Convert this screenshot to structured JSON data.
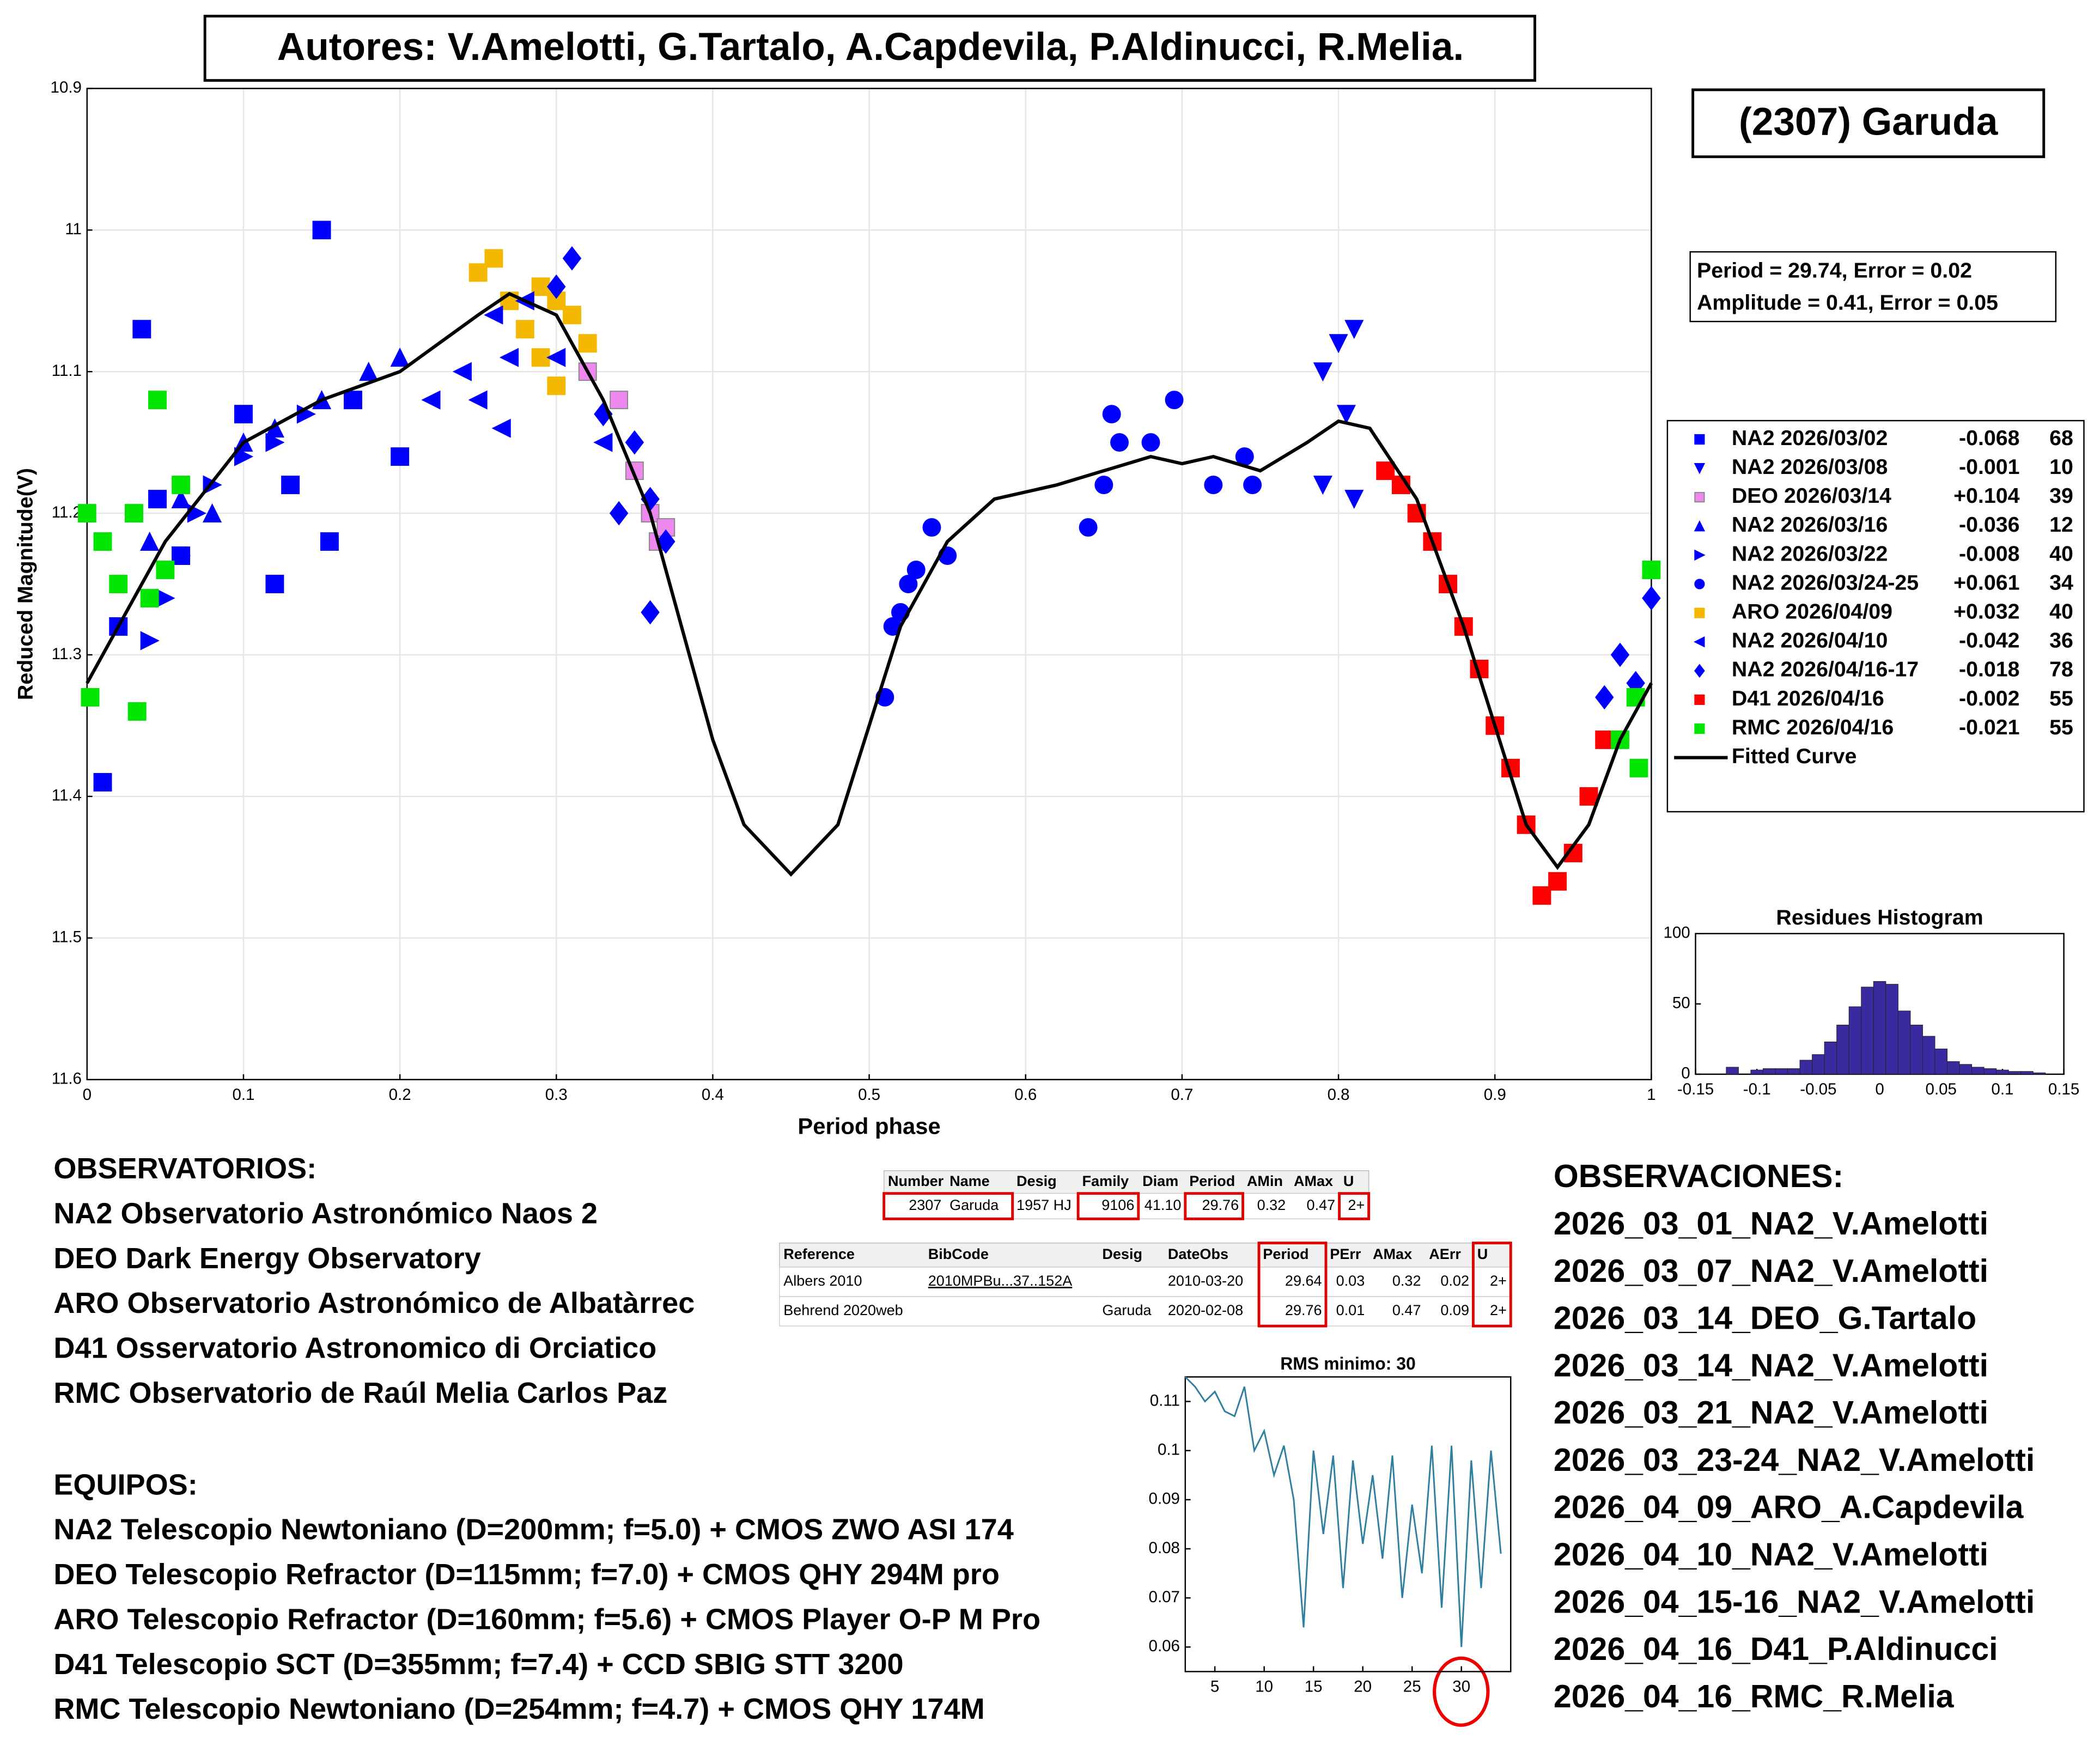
{
  "authors": "Autores: V.Amelotti, G.Tartalo, A.Capdevila, P.Aldinucci, R.Melia.",
  "object_label": "(2307) Garuda",
  "fit_box": [
    "Period =  29.74, Error = 0.02",
    "Amplitude = 0.41, Error = 0.05"
  ],
  "chart_data": [
    {
      "type": "scatter",
      "xlabel": "Period phase",
      "ylabel": "Reduced Magnitude(V)",
      "xlim": [
        0,
        1
      ],
      "xticks": [
        0,
        0.1,
        0.2,
        0.3,
        0.4,
        0.5,
        0.6,
        0.7,
        0.8,
        0.9,
        1
      ],
      "ylim": [
        10.9,
        11.6
      ],
      "yticks": [
        10.9,
        11,
        11.1,
        11.2,
        11.3,
        11.4,
        11.5,
        11.6
      ],
      "y_inverted": true,
      "grid": true,
      "series": [
        {
          "name": "NA2 2026/03/02",
          "offset": "-0.068",
          "count": "68",
          "color": "#0000ff",
          "marker": "square",
          "x": [
            0.01,
            0.02,
            0.035,
            0.045,
            0.06,
            0.1,
            0.12,
            0.13,
            0.15,
            0.155,
            0.17,
            0.2
          ],
          "values": [
            11.39,
            11.28,
            11.07,
            11.19,
            11.23,
            11.13,
            11.25,
            11.18,
            11.0,
            11.22,
            11.12,
            11.16
          ]
        },
        {
          "name": "NA2 2026/03/08",
          "offset": "-0.001",
          "count": "10",
          "color": "#0000ff",
          "marker": "triangle-down",
          "x": [
            0.79,
            0.8,
            0.81,
            0.805,
            0.79,
            0.81
          ],
          "values": [
            11.1,
            11.08,
            11.07,
            11.13,
            11.18,
            11.19
          ]
        },
        {
          "name": "DEO 2026/03/14",
          "offset": "+0.104",
          "count": "39",
          "color": "#ee88ee",
          "marker": "square",
          "x": [
            0.32,
            0.34,
            0.35,
            0.36,
            0.365,
            0.37
          ],
          "values": [
            11.1,
            11.12,
            11.17,
            11.2,
            11.22,
            11.21
          ]
        },
        {
          "name": "NA2 2026/03/16",
          "offset": "-0.036",
          "count": "12",
          "color": "#0000ff",
          "marker": "triangle-up",
          "x": [
            0.04,
            0.06,
            0.08,
            0.1,
            0.12,
            0.15,
            0.18,
            0.2
          ],
          "values": [
            11.22,
            11.19,
            11.2,
            11.15,
            11.14,
            11.12,
            11.1,
            11.09
          ]
        },
        {
          "name": "NA2 2026/03/22",
          "offset": "-0.008",
          "count": "40",
          "color": "#0000ff",
          "marker": "triangle-right",
          "x": [
            0.04,
            0.05,
            0.06,
            0.07,
            0.08,
            0.1,
            0.12,
            0.14
          ],
          "values": [
            11.29,
            11.26,
            11.23,
            11.2,
            11.18,
            11.16,
            11.15,
            11.13
          ]
        },
        {
          "name": "NA2 2026/03/24-25",
          "offset": "+0.061",
          "count": "34",
          "color": "#0000ff",
          "marker": "circle",
          "x": [
            0.51,
            0.515,
            0.52,
            0.525,
            0.53,
            0.54,
            0.55,
            0.64,
            0.65,
            0.655,
            0.66,
            0.68,
            0.695,
            0.72,
            0.74,
            0.745
          ],
          "values": [
            11.33,
            11.28,
            11.27,
            11.25,
            11.24,
            11.21,
            11.23,
            11.21,
            11.18,
            11.13,
            11.15,
            11.15,
            11.12,
            11.18,
            11.16,
            11.18
          ]
        },
        {
          "name": "ARO 2026/04/09",
          "offset": "+0.032",
          "count": "40",
          "color": "#f5b800",
          "marker": "square",
          "x": [
            0.25,
            0.26,
            0.27,
            0.28,
            0.29,
            0.3,
            0.31,
            0.32,
            0.3,
            0.29
          ],
          "values": [
            11.03,
            11.02,
            11.05,
            11.07,
            11.04,
            11.05,
            11.06,
            11.08,
            11.11,
            11.09
          ]
        },
        {
          "name": "NA2 2026/04/10",
          "offset": "-0.042",
          "count": "36",
          "color": "#0000ff",
          "marker": "triangle-left",
          "x": [
            0.22,
            0.24,
            0.25,
            0.26,
            0.27,
            0.28,
            0.265,
            0.3,
            0.33
          ],
          "values": [
            11.12,
            11.1,
            11.12,
            11.06,
            11.09,
            11.05,
            11.14,
            11.09,
            11.15
          ]
        },
        {
          "name": "NA2 2026/04/16-17",
          "offset": "-0.018",
          "count": "78",
          "color": "#0000ff",
          "marker": "diamond",
          "x": [
            0.31,
            0.3,
            0.33,
            0.35,
            0.36,
            0.37,
            0.36,
            0.34,
            0.97,
            0.98,
            0.99,
            1.0
          ],
          "values": [
            11.02,
            11.04,
            11.13,
            11.15,
            11.19,
            11.22,
            11.27,
            11.2,
            11.33,
            11.3,
            11.32,
            11.26
          ]
        },
        {
          "name": "D41 2026/04/16",
          "offset": "-0.002",
          "count": "55",
          "color": "#ff0000",
          "marker": "square",
          "x": [
            0.83,
            0.84,
            0.85,
            0.86,
            0.87,
            0.88,
            0.89,
            0.9,
            0.91,
            0.92,
            0.93,
            0.94,
            0.95,
            0.96,
            0.97
          ],
          "values": [
            11.17,
            11.18,
            11.2,
            11.22,
            11.25,
            11.28,
            11.31,
            11.35,
            11.38,
            11.42,
            11.47,
            11.46,
            11.44,
            11.4,
            11.36
          ]
        },
        {
          "name": "RMC 2026/04/16",
          "offset": "-0.021",
          "count": "55",
          "color": "#00e600",
          "marker": "square",
          "x": [
            0.0,
            0.002,
            0.01,
            0.02,
            0.03,
            0.032,
            0.04,
            0.05,
            0.06,
            0.045,
            0.98,
            0.99,
            1.0,
            0.992
          ],
          "values": [
            11.2,
            11.33,
            11.22,
            11.25,
            11.2,
            11.34,
            11.26,
            11.24,
            11.18,
            11.12,
            11.36,
            11.33,
            11.24,
            11.38
          ]
        },
        {
          "name": "Fitted Curve",
          "type": "line",
          "color": "#000000",
          "x": [
            0,
            0.05,
            0.1,
            0.15,
            0.2,
            0.25,
            0.27,
            0.3,
            0.33,
            0.36,
            0.38,
            0.4,
            0.42,
            0.45,
            0.48,
            0.5,
            0.52,
            0.55,
            0.58,
            0.62,
            0.65,
            0.68,
            0.7,
            0.72,
            0.75,
            0.78,
            0.8,
            0.82,
            0.85,
            0.88,
            0.9,
            0.92,
            0.94,
            0.96,
            0.98,
            1
          ],
          "values": [
            11.32,
            11.22,
            11.15,
            11.12,
            11.1,
            11.06,
            11.045,
            11.06,
            11.12,
            11.2,
            11.28,
            11.36,
            11.42,
            11.455,
            11.42,
            11.35,
            11.28,
            11.22,
            11.19,
            11.18,
            11.17,
            11.16,
            11.165,
            11.16,
            11.17,
            11.15,
            11.135,
            11.14,
            11.19,
            11.28,
            11.35,
            11.42,
            11.45,
            11.42,
            11.36,
            11.32
          ]
        }
      ]
    },
    {
      "type": "histogram",
      "title": "Residues Histogram",
      "color": "#3a2aa0",
      "xlim": [
        -0.15,
        0.15
      ],
      "xticks": [
        -0.15,
        -0.1,
        -0.05,
        0,
        0.05,
        0.1,
        0.15
      ],
      "ylim": [
        0,
        100
      ],
      "yticks": [
        0,
        50,
        100
      ],
      "bins": [
        -0.125,
        -0.115,
        -0.105,
        -0.095,
        -0.085,
        -0.075,
        -0.065,
        -0.055,
        -0.045,
        -0.035,
        -0.025,
        -0.015,
        -0.005,
        0.005,
        0.015,
        0.025,
        0.035,
        0.045,
        0.055,
        0.065,
        0.075,
        0.085,
        0.095,
        0.105,
        0.115,
        0.125,
        0.135
      ],
      "counts": [
        5,
        0,
        3,
        4,
        4,
        4,
        10,
        14,
        23,
        35,
        48,
        62,
        66,
        64,
        45,
        35,
        27,
        18,
        9,
        7,
        5,
        4,
        3,
        2,
        2,
        1
      ]
    },
    {
      "type": "line",
      "title": "RMS minimo: 30",
      "color": "#2f7fa0",
      "xlim": [
        2,
        35
      ],
      "xticks": [
        5,
        10,
        15,
        20,
        25,
        30
      ],
      "ylim": [
        0.055,
        0.115
      ],
      "yticks": [
        0.06,
        0.07,
        0.08,
        0.09,
        0.1,
        0.11
      ],
      "x": [
        2,
        3,
        4,
        5,
        6,
        7,
        8,
        9,
        10,
        11,
        12,
        13,
        14,
        15,
        16,
        17,
        18,
        19,
        20,
        21,
        22,
        23,
        24,
        25,
        26,
        27,
        28,
        29,
        30,
        31,
        32,
        33,
        34
      ],
      "values": [
        0.115,
        0.113,
        0.11,
        0.112,
        0.108,
        0.107,
        0.113,
        0.1,
        0.104,
        0.095,
        0.101,
        0.09,
        0.064,
        0.1,
        0.083,
        0.099,
        0.072,
        0.098,
        0.081,
        0.095,
        0.078,
        0.099,
        0.07,
        0.089,
        0.075,
        0.101,
        0.068,
        0.101,
        0.06,
        0.098,
        0.072,
        0.1,
        0.079
      ]
    }
  ],
  "tables": [
    {
      "header": [
        "Number",
        "Name",
        "Desig",
        "Family",
        "Diam",
        "Period",
        "AMin",
        "AMax",
        "U"
      ],
      "rows": [
        [
          "2307",
          "Garuda",
          "1957 HJ",
          "9106",
          "41.10",
          "29.76",
          "0.32",
          "0.47",
          "2+"
        ]
      ]
    },
    {
      "header": [
        "Reference",
        "BibCode",
        "Desig",
        "DateObs",
        "Period",
        "PErr",
        "AMax",
        "AErr",
        "U"
      ],
      "rows": [
        [
          "Albers 2010",
          "2010MPBu...37..152A",
          null,
          "2010-03-20",
          "29.64",
          "0.03",
          "0.32",
          "0.02",
          "2+"
        ],
        [
          "Behrend 2020web",
          null,
          "Garuda",
          "2020-02-08",
          "29.76",
          "0.01",
          "0.47",
          "0.09",
          "2+"
        ]
      ]
    }
  ],
  "observatorios": {
    "title": "OBSERVATORIOS:",
    "lines": [
      "NA2 Observatorio Astronómico Naos 2",
      "DEO Dark Energy Observatory",
      "ARO Observatorio Astronómico de Albatàrrec",
      "D41 Osservatorio Astronomico di Orciatico",
      "RMC Observatorio de Raúl Melia Carlos Paz"
    ]
  },
  "equipos": {
    "title": "EQUIPOS:",
    "lines": [
      "NA2 Telescopio Newtoniano (D=200mm; f=5.0) + CMOS ZWO ASI 174",
      "DEO Telescopio Refractor (D=115mm; f=7.0) + CMOS QHY 294M pro",
      "ARO Telescopio Refractor (D=160mm; f=5.6) + CMOS Player O-P M Pro",
      "D41 Telescopio SCT (D=355mm; f=7.4) + CCD SBIG STT 3200",
      "RMC Telescopio Newtoniano (D=254mm; f=4.7) + CMOS QHY 174M"
    ]
  },
  "observaciones": {
    "title": "OBSERVACIONES:",
    "lines": [
      "2026_03_01_NA2_V.Amelotti",
      "2026_03_07_NA2_V.Amelotti",
      "2026_03_14_DEO_G.Tartalo",
      "2026_03_14_NA2_V.Amelotti",
      "2026_03_21_NA2_V.Amelotti",
      "2026_03_23-24_NA2_V.Amelotti",
      "2026_04_09_ARO_A.Capdevila",
      "2026_04_10_NA2_V.Amelotti",
      "2026_04_15-16_NA2_V.Amelotti",
      "2026_04_16_D41_P.Aldinucci",
      "2026_04_16_RMC_R.Melia"
    ]
  }
}
